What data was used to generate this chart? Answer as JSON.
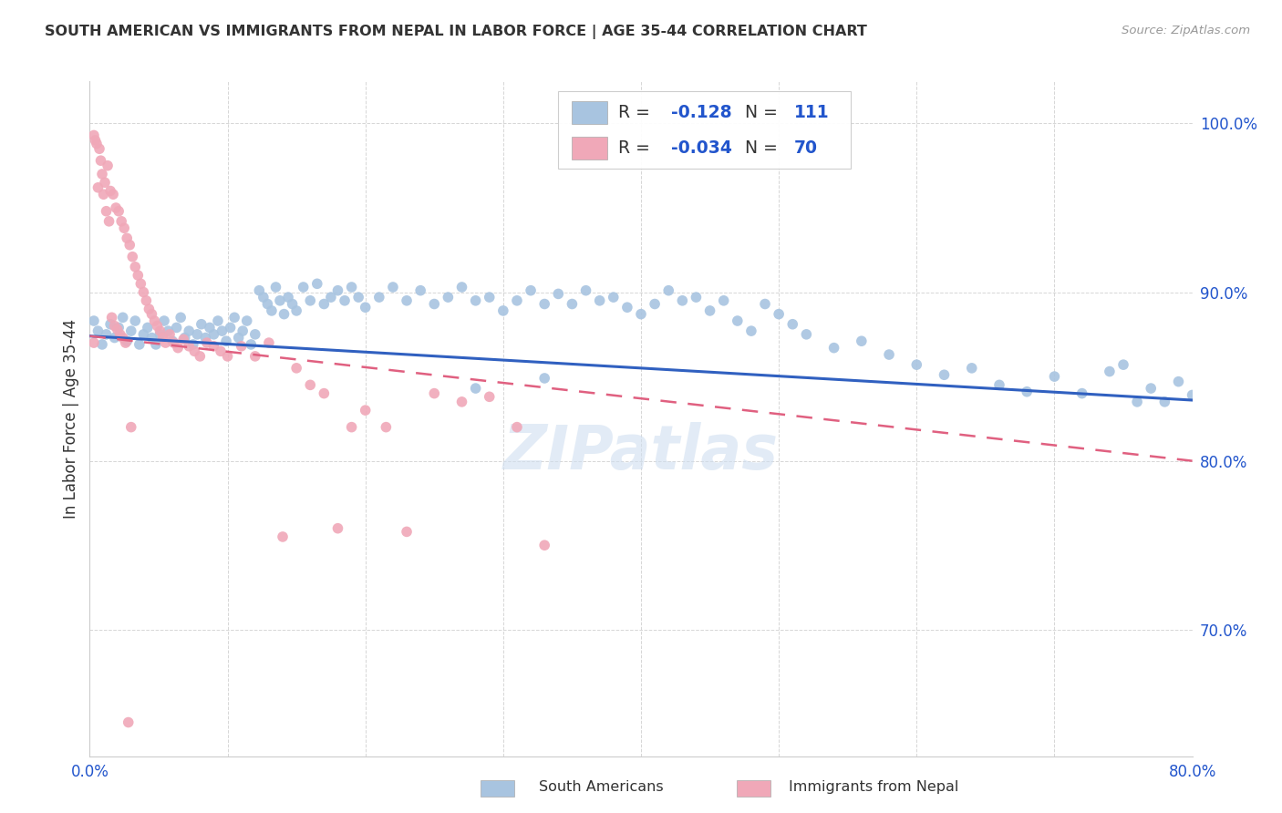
{
  "title": "SOUTH AMERICAN VS IMMIGRANTS FROM NEPAL IN LABOR FORCE | AGE 35-44 CORRELATION CHART",
  "source": "Source: ZipAtlas.com",
  "ylabel": "In Labor Force | Age 35-44",
  "x_min": 0.0,
  "x_max": 0.8,
  "y_min": 0.625,
  "y_max": 1.025,
  "x_ticks": [
    0.0,
    0.1,
    0.2,
    0.3,
    0.4,
    0.5,
    0.6,
    0.7,
    0.8
  ],
  "x_tick_labels": [
    "0.0%",
    "",
    "",
    "",
    "",
    "",
    "",
    "",
    "80.0%"
  ],
  "y_ticks": [
    0.7,
    0.8,
    0.9,
    1.0
  ],
  "y_tick_labels": [
    "70.0%",
    "80.0%",
    "90.0%",
    "100.0%"
  ],
  "blue_color": "#A8C4E0",
  "pink_color": "#F0A8B8",
  "blue_line_color": "#3060C0",
  "pink_line_color": "#E06080",
  "legend_blue_R": "-0.128",
  "legend_blue_N": "111",
  "legend_pink_R": "-0.034",
  "legend_pink_N": "70",
  "legend_label_blue": "South Americans",
  "legend_label_pink": "Immigrants from Nepal",
  "watermark": "ZIPatlas",
  "blue_scatter_x": [
    0.003,
    0.006,
    0.009,
    0.012,
    0.015,
    0.018,
    0.021,
    0.024,
    0.027,
    0.03,
    0.033,
    0.036,
    0.039,
    0.042,
    0.045,
    0.048,
    0.051,
    0.054,
    0.057,
    0.06,
    0.063,
    0.066,
    0.069,
    0.072,
    0.075,
    0.078,
    0.081,
    0.084,
    0.087,
    0.09,
    0.093,
    0.096,
    0.099,
    0.102,
    0.105,
    0.108,
    0.111,
    0.114,
    0.117,
    0.12,
    0.123,
    0.126,
    0.129,
    0.132,
    0.135,
    0.138,
    0.141,
    0.144,
    0.147,
    0.15,
    0.155,
    0.16,
    0.165,
    0.17,
    0.175,
    0.18,
    0.185,
    0.19,
    0.195,
    0.2,
    0.21,
    0.22,
    0.23,
    0.24,
    0.25,
    0.26,
    0.27,
    0.28,
    0.29,
    0.3,
    0.31,
    0.32,
    0.33,
    0.34,
    0.35,
    0.36,
    0.37,
    0.38,
    0.39,
    0.4,
    0.41,
    0.42,
    0.43,
    0.44,
    0.45,
    0.46,
    0.47,
    0.48,
    0.49,
    0.5,
    0.51,
    0.52,
    0.54,
    0.56,
    0.58,
    0.6,
    0.62,
    0.64,
    0.66,
    0.68,
    0.7,
    0.72,
    0.74,
    0.75,
    0.76,
    0.77,
    0.78,
    0.79,
    0.8,
    0.28,
    0.33
  ],
  "blue_scatter_y": [
    0.883,
    0.877,
    0.869,
    0.875,
    0.881,
    0.873,
    0.879,
    0.885,
    0.871,
    0.877,
    0.883,
    0.869,
    0.875,
    0.879,
    0.873,
    0.869,
    0.875,
    0.883,
    0.877,
    0.871,
    0.879,
    0.885,
    0.873,
    0.877,
    0.869,
    0.875,
    0.881,
    0.873,
    0.879,
    0.875,
    0.883,
    0.877,
    0.871,
    0.879,
    0.885,
    0.873,
    0.877,
    0.883,
    0.869,
    0.875,
    0.901,
    0.897,
    0.893,
    0.889,
    0.903,
    0.895,
    0.887,
    0.897,
    0.893,
    0.889,
    0.903,
    0.895,
    0.905,
    0.893,
    0.897,
    0.901,
    0.895,
    0.903,
    0.897,
    0.891,
    0.897,
    0.903,
    0.895,
    0.901,
    0.893,
    0.897,
    0.903,
    0.895,
    0.897,
    0.889,
    0.895,
    0.901,
    0.893,
    0.899,
    0.893,
    0.901,
    0.895,
    0.897,
    0.891,
    0.887,
    0.893,
    0.901,
    0.895,
    0.897,
    0.889,
    0.895,
    0.883,
    0.877,
    0.893,
    0.887,
    0.881,
    0.875,
    0.867,
    0.871,
    0.863,
    0.857,
    0.851,
    0.855,
    0.845,
    0.841,
    0.85,
    0.84,
    0.853,
    0.857,
    0.835,
    0.843,
    0.835,
    0.847,
    0.839,
    0.843,
    0.849
  ],
  "pink_scatter_x": [
    0.003,
    0.004,
    0.005,
    0.007,
    0.009,
    0.011,
    0.013,
    0.015,
    0.017,
    0.019,
    0.021,
    0.023,
    0.025,
    0.027,
    0.029,
    0.031,
    0.033,
    0.035,
    0.037,
    0.039,
    0.041,
    0.043,
    0.045,
    0.047,
    0.049,
    0.051,
    0.053,
    0.055,
    0.058,
    0.061,
    0.064,
    0.068,
    0.072,
    0.076,
    0.08,
    0.085,
    0.09,
    0.095,
    0.1,
    0.11,
    0.12,
    0.13,
    0.14,
    0.15,
    0.16,
    0.17,
    0.18,
    0.19,
    0.2,
    0.215,
    0.23,
    0.25,
    0.27,
    0.29,
    0.31,
    0.33,
    0.003,
    0.006,
    0.008,
    0.01,
    0.012,
    0.014,
    0.016,
    0.018,
    0.02,
    0.022,
    0.024,
    0.026,
    0.028,
    0.03
  ],
  "pink_scatter_y": [
    0.993,
    0.99,
    0.988,
    0.985,
    0.97,
    0.965,
    0.975,
    0.96,
    0.958,
    0.95,
    0.948,
    0.942,
    0.938,
    0.932,
    0.928,
    0.921,
    0.915,
    0.91,
    0.905,
    0.9,
    0.895,
    0.89,
    0.887,
    0.883,
    0.88,
    0.877,
    0.873,
    0.87,
    0.875,
    0.87,
    0.867,
    0.872,
    0.868,
    0.865,
    0.862,
    0.87,
    0.868,
    0.865,
    0.862,
    0.868,
    0.862,
    0.87,
    0.755,
    0.855,
    0.845,
    0.84,
    0.76,
    0.82,
    0.83,
    0.82,
    0.758,
    0.84,
    0.835,
    0.838,
    0.82,
    0.75,
    0.87,
    0.962,
    0.978,
    0.958,
    0.948,
    0.942,
    0.885,
    0.88,
    0.878,
    0.875,
    0.873,
    0.87,
    0.645,
    0.82
  ]
}
